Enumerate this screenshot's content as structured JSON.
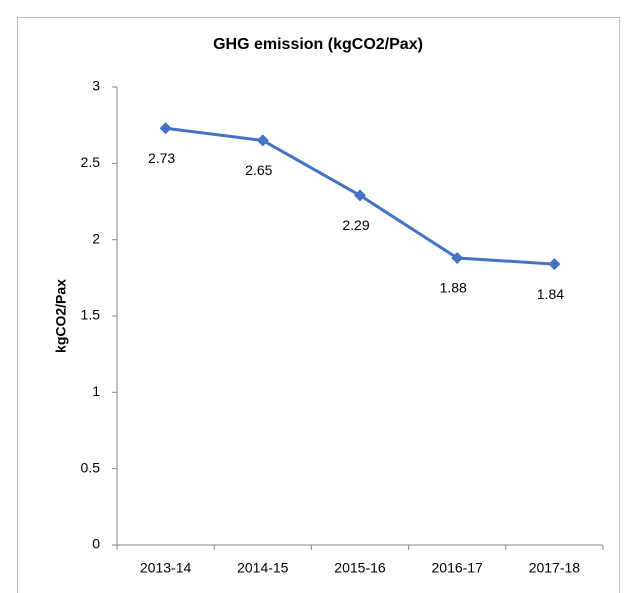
{
  "chart_data": {
    "type": "line",
    "title": "GHG emission (kgCO2/Pax)",
    "ylabel": "kgCO2/Pax",
    "categories": [
      "2013-14",
      "2014-15",
      "2015-16",
      "2016-17",
      "2017-18"
    ],
    "series": [
      {
        "color": "#4472c4",
        "values": [
          2.73,
          2.65,
          2.29,
          1.88,
          1.84
        ]
      }
    ],
    "ylim": [
      0,
      3
    ],
    "yticks": [
      0,
      0.5,
      1,
      1.5,
      2,
      2.5,
      3
    ],
    "grid": false,
    "data_labels": true
  }
}
